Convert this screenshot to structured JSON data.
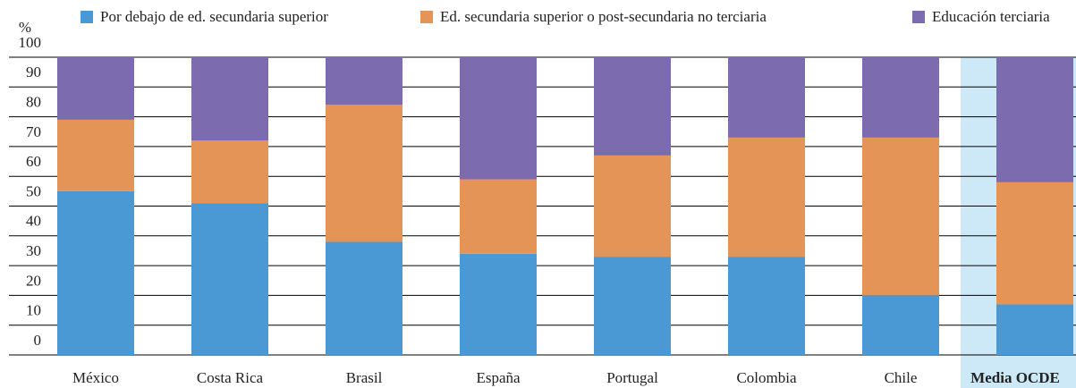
{
  "chart_data": {
    "type": "stacked_bar",
    "y_label": "%",
    "categories": [
      "México",
      "Costa Rica",
      "Brasil",
      "España",
      "Portugal",
      "Colombia",
      "Chile",
      "Media OCDE"
    ],
    "series": [
      {
        "name": "Por debajo de ed. secundaria superior",
        "color": "#4a98d4",
        "values": [
          55,
          51,
          38,
          34,
          33,
          33,
          20,
          17
        ]
      },
      {
        "name": "Ed. secundaria superior o post-secundaria no terciaria",
        "color": "#e39456",
        "values": [
          24,
          21,
          46,
          25,
          34,
          40,
          53,
          41
        ]
      },
      {
        "name": "Educación terciaria",
        "color": "#7d6bb0",
        "values": [
          21,
          28,
          16,
          41,
          33,
          27,
          27,
          42
        ]
      }
    ],
    "highlight": "Media OCDE",
    "highlight_color": "#cde9f8",
    "ylim": [
      0,
      100
    ],
    "yticks": [
      0,
      10,
      20,
      30,
      40,
      50,
      60,
      70,
      80,
      90,
      100
    ],
    "grid": true
  }
}
